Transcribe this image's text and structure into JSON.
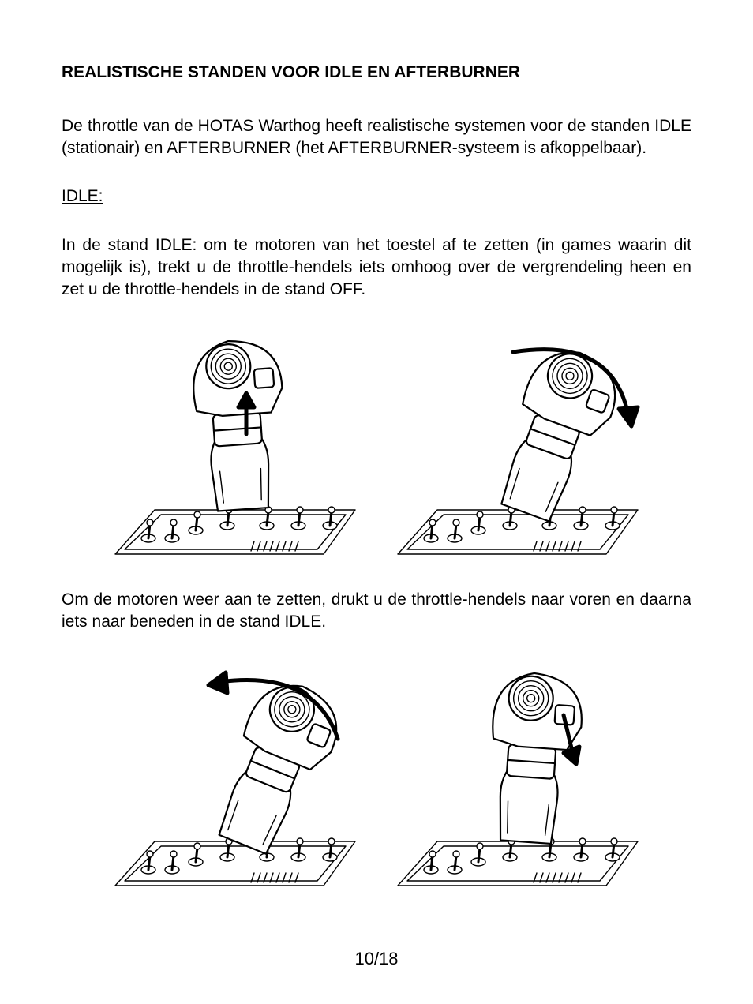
{
  "heading": "REALISTISCHE STANDEN VOOR IDLE EN AFTERBURNER",
  "intro": "De throttle van de HOTAS Warthog heeft realistische systemen voor de standen IDLE (stationair) en AFTERBURNER (het AFTERBURNER-systeem is afkoppelbaar).",
  "idle_label": "IDLE:",
  "idle_para1": "In de stand IDLE: om te motoren van het toestel af te zetten (in games waarin dit mogelijk is), trekt u de throttle-hendels iets omhoog over de vergrendeling heen en zet u de throttle-hendels in de stand OFF.",
  "idle_para2": "Om de motoren weer aan te zetten, drukt u de throttle-hendels naar voren en daarna iets naar beneden in de stand IDLE.",
  "page_number": "10/18",
  "illustration_colors": {
    "stroke": "#000000",
    "fill": "#ffffff",
    "line_width_main": 2.2,
    "line_width_detail": 1.4
  },
  "figure_sets": [
    {
      "id": "row1",
      "panels": [
        {
          "tilt_deg": -4,
          "arrow": "up-short"
        },
        {
          "tilt_deg": 20,
          "arrow": "arc-back"
        }
      ]
    },
    {
      "id": "row2",
      "panels": [
        {
          "tilt_deg": 22,
          "arrow": "arc-forward"
        },
        {
          "tilt_deg": 4,
          "arrow": "down-short"
        }
      ]
    }
  ]
}
